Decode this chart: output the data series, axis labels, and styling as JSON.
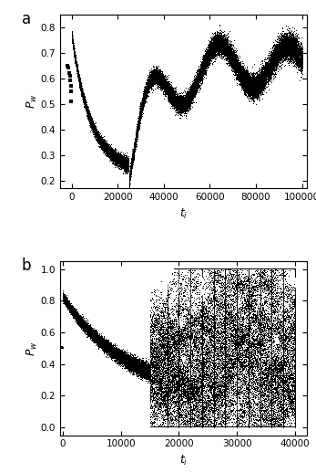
{
  "panel_a": {
    "label": "a",
    "xlabel": "$t_i$",
    "ylabel": "$P_w$",
    "xlim": [
      -5000,
      102000
    ],
    "ylim": [
      0.17,
      0.85
    ],
    "xticks": [
      0,
      20000,
      40000,
      60000,
      80000,
      100000
    ],
    "yticks": [
      0.2,
      0.3,
      0.4,
      0.5,
      0.6,
      0.7,
      0.8
    ],
    "n_agents": 80,
    "seed": 42,
    "background": "#ffffff"
  },
  "panel_b": {
    "label": "b",
    "xlabel": "$t_i$",
    "ylabel": "$P_w$",
    "xlim": [
      -500,
      42000
    ],
    "ylim": [
      -0.05,
      1.05
    ],
    "xticks": [
      0,
      10000,
      20000,
      30000,
      40000
    ],
    "yticks": [
      0.0,
      0.2,
      0.4,
      0.6,
      0.8,
      1.0
    ],
    "n_agents": 60,
    "seed": 7,
    "background": "#ffffff"
  },
  "dot_color": "#000000",
  "dot_size": 1.0,
  "figsize": [
    3.47,
    5.18
  ],
  "dpi": 100
}
